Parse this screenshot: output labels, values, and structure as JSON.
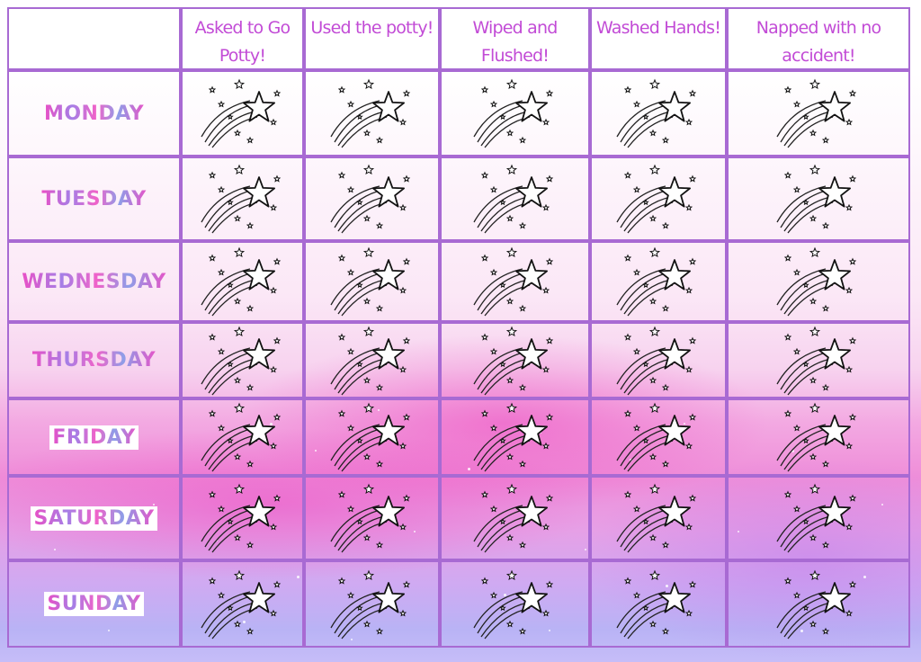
{
  "chart": {
    "columns": [
      {
        "label": "Asked to Go\nPotty!"
      },
      {
        "label": "Used the potty!"
      },
      {
        "label": "Wiped  and\nFlushed!"
      },
      {
        "label": "Washed Hands!"
      },
      {
        "label": "Napped with no\naccident!"
      }
    ],
    "days": [
      {
        "label": "MONDAY"
      },
      {
        "label": "TUESDAY"
      },
      {
        "label": "WEDNESDAY"
      },
      {
        "label": "THURSDAY"
      },
      {
        "label": "FRIDAY"
      },
      {
        "label": "SATURDAY"
      },
      {
        "label": "SUNDAY"
      }
    ],
    "cell_icon": "shooting-star-icon",
    "colors": {
      "border": "#a86ad3",
      "header_text": "#c24bd6",
      "day_text_gradient": [
        "#e94fc6",
        "#a57fe6",
        "#f062c9",
        "#8e9ee8"
      ]
    }
  }
}
